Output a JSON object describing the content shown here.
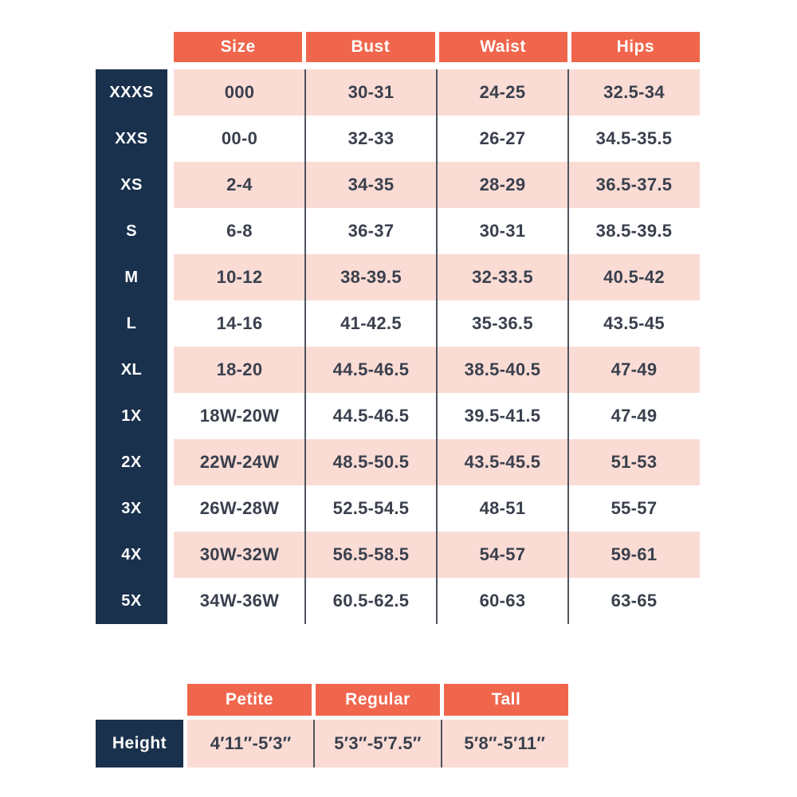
{
  "colors": {
    "coral": "#F0664D",
    "navy": "#1A314D",
    "pink": "#FADCD5",
    "row_alt": "#FFFFFF",
    "data_text": "#3A404D",
    "divider_line": "#4E545E",
    "header_text": "#FFFFFF"
  },
  "chart_data": [
    {
      "type": "table",
      "columns": [
        "Size",
        "Bust",
        "Waist",
        "Hips"
      ],
      "row_labels": [
        "XXXS",
        "XXS",
        "XS",
        "S",
        "M",
        "L",
        "XL",
        "1X",
        "2X",
        "3X",
        "4X",
        "5X"
      ],
      "rows": [
        [
          "000",
          "30-31",
          "24-25",
          "32.5-34"
        ],
        [
          "00-0",
          "32-33",
          "26-27",
          "34.5-35.5"
        ],
        [
          "2-4",
          "34-35",
          "28-29",
          "36.5-37.5"
        ],
        [
          "6-8",
          "36-37",
          "30-31",
          "38.5-39.5"
        ],
        [
          "10-12",
          "38-39.5",
          "32-33.5",
          "40.5-42"
        ],
        [
          "14-16",
          "41-42.5",
          "35-36.5",
          "43.5-45"
        ],
        [
          "18-20",
          "44.5-46.5",
          "38.5-40.5",
          "47-49"
        ],
        [
          "18W-20W",
          "44.5-46.5",
          "39.5-41.5",
          "47-49"
        ],
        [
          "22W-24W",
          "48.5-50.5",
          "43.5-45.5",
          "51-53"
        ],
        [
          "26W-28W",
          "52.5-54.5",
          "48-51",
          "55-57"
        ],
        [
          "30W-32W",
          "56.5-58.5",
          "54-57",
          "59-61"
        ],
        [
          "34W-36W",
          "60.5-62.5",
          "60-63",
          "63-65"
        ]
      ]
    },
    {
      "type": "table",
      "columns": [
        "Petite",
        "Regular",
        "Tall"
      ],
      "row_labels": [
        "Height"
      ],
      "rows": [
        [
          "4′11″-5′3″",
          "5′3″-5′7.5″",
          "5′8″-5′11″"
        ]
      ]
    }
  ]
}
